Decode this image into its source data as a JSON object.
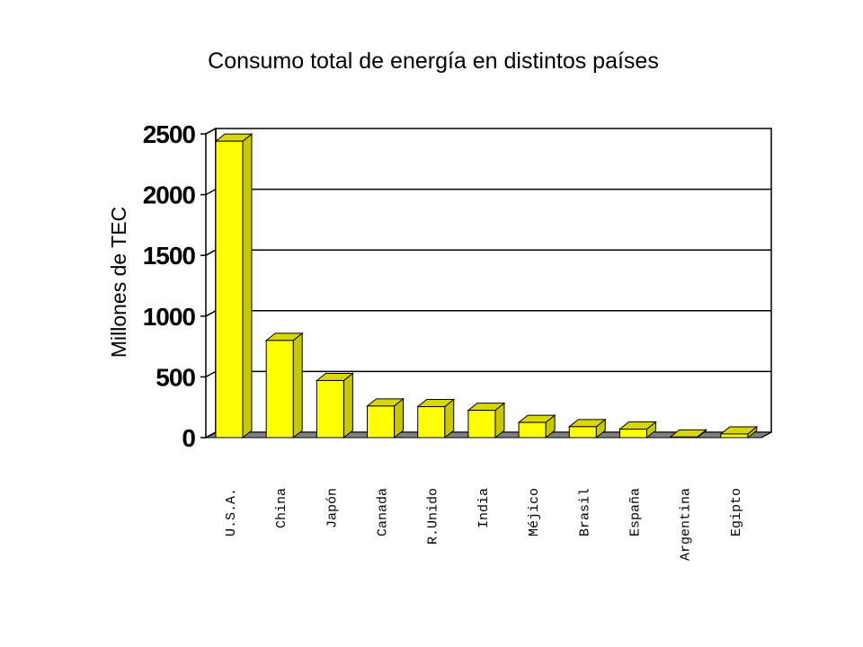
{
  "chart_data": {
    "type": "bar",
    "title": "Consumo total de energía en distintos países",
    "xlabel": "",
    "ylabel": "Millones de TEC",
    "categories": [
      "U.S.A.",
      "China",
      "Japón",
      "Canada",
      "R.Unido",
      "India",
      "Méjico",
      "Brasil",
      "España",
      "Argentina",
      "Egipto"
    ],
    "values": [
      2440,
      800,
      470,
      260,
      255,
      225,
      125,
      90,
      70,
      5,
      30
    ],
    "ylim": [
      0,
      2500
    ],
    "yticks": [
      "0",
      "500",
      "1000",
      "1500",
      "2000",
      "2500"
    ],
    "grid": true,
    "legend": "none",
    "colors": {
      "bar_front": "#ffff00",
      "bar_side": "#c8c800",
      "bar_top": "#d8d800",
      "floor": "#808080",
      "grid": "#000000"
    }
  }
}
